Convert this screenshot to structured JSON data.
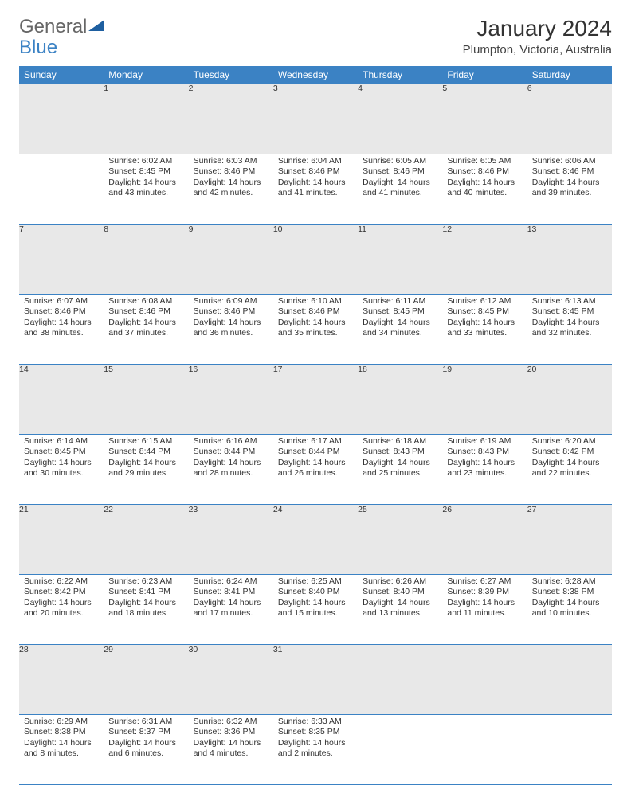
{
  "brand": {
    "part1": "General",
    "part2": "Blue"
  },
  "title": "January 2024",
  "location": "Plumpton, Victoria, Australia",
  "colors": {
    "header_bg": "#3b82c4",
    "daynum_bg": "#e8e8e8",
    "text": "#333333",
    "brand_blue": "#3b82c4"
  },
  "weekdays": [
    "Sunday",
    "Monday",
    "Tuesday",
    "Wednesday",
    "Thursday",
    "Friday",
    "Saturday"
  ],
  "first_weekday_index": 1,
  "days": [
    {
      "n": 1,
      "sunrise": "6:02 AM",
      "sunset": "8:45 PM",
      "daylight": "14 hours and 43 minutes."
    },
    {
      "n": 2,
      "sunrise": "6:03 AM",
      "sunset": "8:46 PM",
      "daylight": "14 hours and 42 minutes."
    },
    {
      "n": 3,
      "sunrise": "6:04 AM",
      "sunset": "8:46 PM",
      "daylight": "14 hours and 41 minutes."
    },
    {
      "n": 4,
      "sunrise": "6:05 AM",
      "sunset": "8:46 PM",
      "daylight": "14 hours and 41 minutes."
    },
    {
      "n": 5,
      "sunrise": "6:05 AM",
      "sunset": "8:46 PM",
      "daylight": "14 hours and 40 minutes."
    },
    {
      "n": 6,
      "sunrise": "6:06 AM",
      "sunset": "8:46 PM",
      "daylight": "14 hours and 39 minutes."
    },
    {
      "n": 7,
      "sunrise": "6:07 AM",
      "sunset": "8:46 PM",
      "daylight": "14 hours and 38 minutes."
    },
    {
      "n": 8,
      "sunrise": "6:08 AM",
      "sunset": "8:46 PM",
      "daylight": "14 hours and 37 minutes."
    },
    {
      "n": 9,
      "sunrise": "6:09 AM",
      "sunset": "8:46 PM",
      "daylight": "14 hours and 36 minutes."
    },
    {
      "n": 10,
      "sunrise": "6:10 AM",
      "sunset": "8:46 PM",
      "daylight": "14 hours and 35 minutes."
    },
    {
      "n": 11,
      "sunrise": "6:11 AM",
      "sunset": "8:45 PM",
      "daylight": "14 hours and 34 minutes."
    },
    {
      "n": 12,
      "sunrise": "6:12 AM",
      "sunset": "8:45 PM",
      "daylight": "14 hours and 33 minutes."
    },
    {
      "n": 13,
      "sunrise": "6:13 AM",
      "sunset": "8:45 PM",
      "daylight": "14 hours and 32 minutes."
    },
    {
      "n": 14,
      "sunrise": "6:14 AM",
      "sunset": "8:45 PM",
      "daylight": "14 hours and 30 minutes."
    },
    {
      "n": 15,
      "sunrise": "6:15 AM",
      "sunset": "8:44 PM",
      "daylight": "14 hours and 29 minutes."
    },
    {
      "n": 16,
      "sunrise": "6:16 AM",
      "sunset": "8:44 PM",
      "daylight": "14 hours and 28 minutes."
    },
    {
      "n": 17,
      "sunrise": "6:17 AM",
      "sunset": "8:44 PM",
      "daylight": "14 hours and 26 minutes."
    },
    {
      "n": 18,
      "sunrise": "6:18 AM",
      "sunset": "8:43 PM",
      "daylight": "14 hours and 25 minutes."
    },
    {
      "n": 19,
      "sunrise": "6:19 AM",
      "sunset": "8:43 PM",
      "daylight": "14 hours and 23 minutes."
    },
    {
      "n": 20,
      "sunrise": "6:20 AM",
      "sunset": "8:42 PM",
      "daylight": "14 hours and 22 minutes."
    },
    {
      "n": 21,
      "sunrise": "6:22 AM",
      "sunset": "8:42 PM",
      "daylight": "14 hours and 20 minutes."
    },
    {
      "n": 22,
      "sunrise": "6:23 AM",
      "sunset": "8:41 PM",
      "daylight": "14 hours and 18 minutes."
    },
    {
      "n": 23,
      "sunrise": "6:24 AM",
      "sunset": "8:41 PM",
      "daylight": "14 hours and 17 minutes."
    },
    {
      "n": 24,
      "sunrise": "6:25 AM",
      "sunset": "8:40 PM",
      "daylight": "14 hours and 15 minutes."
    },
    {
      "n": 25,
      "sunrise": "6:26 AM",
      "sunset": "8:40 PM",
      "daylight": "14 hours and 13 minutes."
    },
    {
      "n": 26,
      "sunrise": "6:27 AM",
      "sunset": "8:39 PM",
      "daylight": "14 hours and 11 minutes."
    },
    {
      "n": 27,
      "sunrise": "6:28 AM",
      "sunset": "8:38 PM",
      "daylight": "14 hours and 10 minutes."
    },
    {
      "n": 28,
      "sunrise": "6:29 AM",
      "sunset": "8:38 PM",
      "daylight": "14 hours and 8 minutes."
    },
    {
      "n": 29,
      "sunrise": "6:31 AM",
      "sunset": "8:37 PM",
      "daylight": "14 hours and 6 minutes."
    },
    {
      "n": 30,
      "sunrise": "6:32 AM",
      "sunset": "8:36 PM",
      "daylight": "14 hours and 4 minutes."
    },
    {
      "n": 31,
      "sunrise": "6:33 AM",
      "sunset": "8:35 PM",
      "daylight": "14 hours and 2 minutes."
    }
  ],
  "labels": {
    "sunrise": "Sunrise:",
    "sunset": "Sunset:",
    "daylight": "Daylight:"
  }
}
